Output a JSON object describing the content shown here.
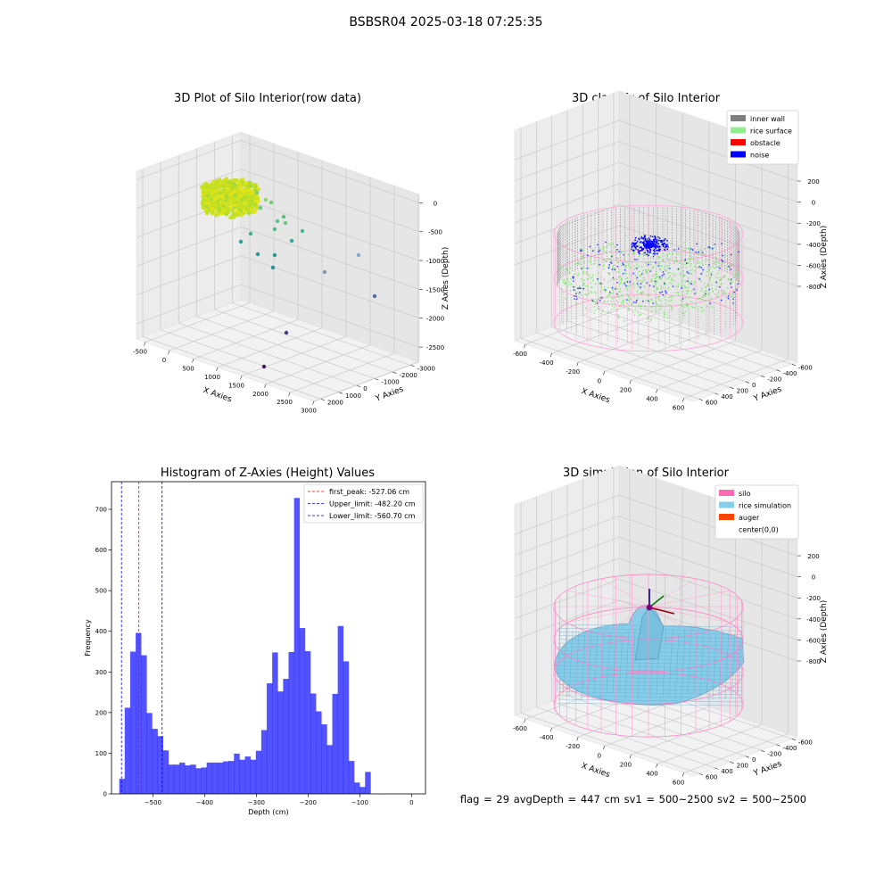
{
  "figure": {
    "suptitle": "BSBSR04 2025-03-18 07:25:35",
    "footer": "flag = 29  avgDepth = 447 cm  sv1 = 500~2500  sv2 = 500~2500"
  },
  "panels": {
    "raw": {
      "title": "3D Plot of Silo Interior(row data)",
      "xlabel": "X Axies",
      "ylabel": "Y Axies",
      "zlabel": "Z Axies (Depth)",
      "xticks": [
        "-500",
        "0",
        "500",
        "1000",
        "1500",
        "2000",
        "2500",
        "3000"
      ],
      "yticks": [
        "2000",
        "1000",
        "0",
        "-1000",
        "-2000",
        "-3000"
      ],
      "zticks": [
        "0",
        "-500",
        "-1000",
        "-1500",
        "-2000",
        "-2500"
      ]
    },
    "classify": {
      "title": "3D classify of Silo Interior",
      "xlabel": "X Axies",
      "ylabel": "Y Axies",
      "zlabel": "Z Axies (Depth)",
      "xticks": [
        "-600",
        "-400",
        "-200",
        "0",
        "200",
        "400",
        "600"
      ],
      "yticks": [
        "600",
        "400",
        "200",
        "0",
        "-200",
        "-400",
        "-600"
      ],
      "zticks": [
        "200",
        "0",
        "-200",
        "-400",
        "-600",
        "-800"
      ],
      "legend": [
        {
          "label": "inner wall",
          "color": "#808080"
        },
        {
          "label": "rice surface",
          "color": "#90ee90"
        },
        {
          "label": "obstacle",
          "color": "#ff0000"
        },
        {
          "label": "noise",
          "color": "#0000ff"
        }
      ]
    },
    "simulation": {
      "title": "3D simulation of Silo Interior",
      "xlabel": "X Axies",
      "ylabel": "Y Axies",
      "zlabel": "Z Axies (Depth)",
      "xticks": [
        "-600",
        "-400",
        "-200",
        "0",
        "200",
        "400",
        "600"
      ],
      "yticks": [
        "600",
        "400",
        "200",
        "0",
        "-200",
        "-400",
        "-600"
      ],
      "zticks": [
        "200",
        "0",
        "-200",
        "-400",
        "-600",
        "-800"
      ],
      "legend": [
        {
          "label": "silo",
          "color": "#ff69b4"
        },
        {
          "label": "rice simulation",
          "color": "#87ceeb"
        },
        {
          "label": "auger",
          "color": "#ff4500"
        },
        {
          "label": "center(0,0)",
          "color": ""
        }
      ]
    }
  },
  "chart_data": [
    {
      "type": "scatter",
      "title": "3D Plot of Silo Interior(row data)",
      "xlabel": "X Axies",
      "ylabel": "Y Axies",
      "zlabel": "Z Axies (Depth)",
      "xlim": [
        -600,
        3200
      ],
      "ylim": [
        -3200,
        2400
      ],
      "zlim": [
        -2800,
        100
      ],
      "grid": true
    },
    {
      "type": "scatter",
      "title": "3D classify of Silo Interior",
      "xlabel": "X Axies",
      "ylabel": "Y Axies",
      "zlabel": "Z Axies (Depth)",
      "xlim": [
        -650,
        650
      ],
      "ylim": [
        -650,
        650
      ],
      "zlim": [
        -950,
        350
      ],
      "series": [
        {
          "name": "inner wall",
          "color": "#808080"
        },
        {
          "name": "rice surface",
          "color": "#90ee90"
        },
        {
          "name": "obstacle",
          "color": "#ff0000"
        },
        {
          "name": "noise",
          "color": "#0000ff"
        }
      ],
      "legend_position": "top-right",
      "grid": true
    },
    {
      "type": "bar",
      "title": "Histogram of Z-Axies (Height) Values",
      "xlabel": "Depth (cm)",
      "ylabel": "Frequency",
      "xticks": [
        -500,
        -400,
        -300,
        -200,
        -100,
        0
      ],
      "yticks": [
        0,
        100,
        200,
        300,
        400,
        500,
        600,
        700
      ],
      "xlim": [
        -580,
        27
      ],
      "ylim": [
        0,
        768
      ],
      "bin_width": 10.56,
      "bin_start": -565,
      "bar_color": "#0000ff",
      "bar_opacity": 0.68,
      "values": [
        37,
        212,
        350,
        396,
        341,
        199,
        160,
        142,
        107,
        72,
        72,
        77,
        70,
        72,
        63,
        65,
        77,
        77,
        77,
        80,
        81,
        99,
        84,
        92,
        84,
        106,
        157,
        272,
        348,
        252,
        283,
        349,
        728,
        408,
        351,
        247,
        203,
        171,
        120,
        246,
        413,
        326,
        81,
        28,
        17,
        54
      ],
      "lines": [
        {
          "label": "first_peak: -527.06 cm",
          "x": -527.06,
          "color": "#ff0000"
        },
        {
          "label": "Upper_limit: -482.20 cm",
          "x": -482.2,
          "color": "#0000ff"
        },
        {
          "label": "Lower_limit: -560.70 cm",
          "x": -560.7,
          "color": "#0000ff"
        }
      ],
      "legend_position": "top-right",
      "grid": false
    },
    {
      "type": "area",
      "title": "3D simulation of Silo Interior",
      "xlabel": "X Axies",
      "ylabel": "Y Axies",
      "zlabel": "Z Axies (Depth)",
      "xlim": [
        -650,
        650
      ],
      "ylim": [
        -650,
        650
      ],
      "zlim": [
        -950,
        350
      ],
      "series": [
        {
          "name": "silo",
          "color": "#ff69b4"
        },
        {
          "name": "rice simulation",
          "color": "#87ceeb"
        },
        {
          "name": "auger",
          "color": "#ff4500"
        },
        {
          "name": "center(0,0)"
        }
      ],
      "legend_position": "top-right",
      "grid": true
    }
  ]
}
